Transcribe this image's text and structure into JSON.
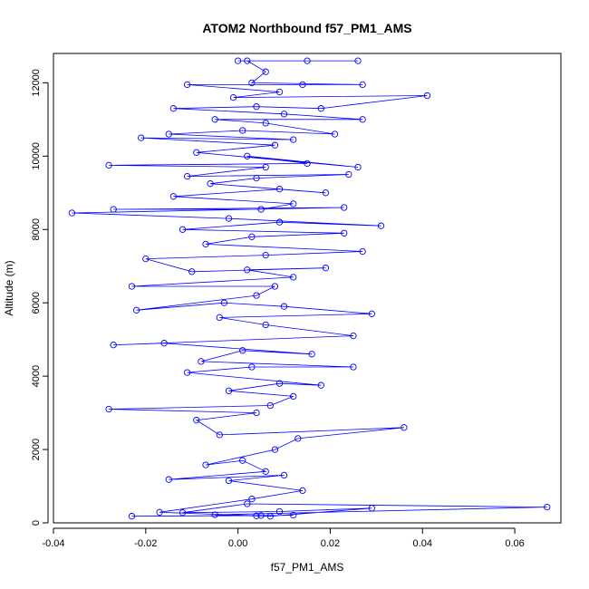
{
  "chart_data": {
    "type": "scatter",
    "title": "ATOM2 Northbound f57_PM1_AMS",
    "xlabel": "f57_PM1_AMS",
    "ylabel": "Altitude (m)",
    "xlim": [
      -0.04,
      0.07
    ],
    "ylim": [
      0,
      12800
    ],
    "x_ticks": [
      -0.04,
      -0.02,
      0.0,
      0.02,
      0.04,
      0.06
    ],
    "x_tick_labels": [
      "-0.04",
      "-0.02",
      "0.00",
      "0.02",
      "0.04",
      "0.06"
    ],
    "y_ticks": [
      0,
      2000,
      4000,
      6000,
      8000,
      10000,
      12000
    ],
    "y_tick_labels": [
      "0",
      "2000",
      "4000",
      "6000",
      "8000",
      "10000",
      "12000"
    ],
    "grid": false,
    "style": "points connected by lines (type='b')",
    "color": "#0000ff",
    "series": [
      {
        "points": [
          [
            -0.023,
            180
          ],
          [
            0.005,
            200
          ],
          [
            0.012,
            210
          ],
          [
            0.004,
            190
          ],
          [
            -0.005,
            220
          ],
          [
            0.067,
            430
          ],
          [
            0.002,
            520
          ],
          [
            -0.012,
            280
          ],
          [
            0.009,
            310
          ],
          [
            0.029,
            400
          ],
          [
            0.007,
            180
          ],
          [
            -0.017,
            290
          ],
          [
            0.003,
            650
          ],
          [
            0.014,
            880
          ],
          [
            -0.002,
            1150
          ],
          [
            0.01,
            1300
          ],
          [
            -0.015,
            1180
          ],
          [
            0.006,
            1400
          ],
          [
            0.001,
            1700
          ],
          [
            -0.007,
            1580
          ],
          [
            0.008,
            2000
          ],
          [
            0.013,
            2300
          ],
          [
            0.036,
            2600
          ],
          [
            -0.004,
            2400
          ],
          [
            -0.009,
            2800
          ],
          [
            0.004,
            3000
          ],
          [
            -0.028,
            3100
          ],
          [
            0.007,
            3200
          ],
          [
            0.012,
            3450
          ],
          [
            -0.002,
            3600
          ],
          [
            0.009,
            3800
          ],
          [
            0.018,
            3750
          ],
          [
            -0.011,
            4100
          ],
          [
            0.003,
            4250
          ],
          [
            0.025,
            4250
          ],
          [
            -0.008,
            4400
          ],
          [
            0.001,
            4700
          ],
          [
            0.016,
            4600
          ],
          [
            -0.016,
            4900
          ],
          [
            -0.027,
            4850
          ],
          [
            0.025,
            5100
          ],
          [
            0.006,
            5400
          ],
          [
            -0.004,
            5600
          ],
          [
            0.029,
            5700
          ],
          [
            0.01,
            5900
          ],
          [
            -0.003,
            6000
          ],
          [
            -0.022,
            5800
          ],
          [
            0.004,
            6200
          ],
          [
            0.008,
            6450
          ],
          [
            -0.023,
            6450
          ],
          [
            0.012,
            6700
          ],
          [
            0.002,
            6900
          ],
          [
            0.019,
            6950
          ],
          [
            -0.01,
            6850
          ],
          [
            -0.02,
            7200
          ],
          [
            0.006,
            7300
          ],
          [
            0.027,
            7400
          ],
          [
            -0.007,
            7600
          ],
          [
            0.003,
            7800
          ],
          [
            0.023,
            7900
          ],
          [
            -0.012,
            8000
          ],
          [
            0.009,
            8200
          ],
          [
            0.031,
            8100
          ],
          [
            -0.002,
            8300
          ],
          [
            -0.036,
            8450
          ],
          [
            0.023,
            8600
          ],
          [
            -0.027,
            8550
          ],
          [
            0.005,
            8550
          ],
          [
            0.012,
            8700
          ],
          [
            -0.014,
            8900
          ],
          [
            0.009,
            9100
          ],
          [
            0.019,
            9000
          ],
          [
            -0.006,
            9250
          ],
          [
            0.004,
            9400
          ],
          [
            0.024,
            9500
          ],
          [
            -0.011,
            9450
          ],
          [
            0.006,
            9700
          ],
          [
            -0.028,
            9750
          ],
          [
            0.015,
            9800
          ],
          [
            0.002,
            10000
          ],
          [
            0.026,
            9700
          ],
          [
            -0.009,
            10100
          ],
          [
            0.008,
            10300
          ],
          [
            -0.021,
            10500
          ],
          [
            0.012,
            10450
          ],
          [
            -0.015,
            10600
          ],
          [
            0.001,
            10700
          ],
          [
            0.021,
            10600
          ],
          [
            0.006,
            10900
          ],
          [
            -0.005,
            11000
          ],
          [
            0.027,
            11000
          ],
          [
            0.01,
            11150
          ],
          [
            -0.014,
            11300
          ],
          [
            0.004,
            11350
          ],
          [
            0.018,
            11300
          ],
          [
            0.041,
            11650
          ],
          [
            -0.001,
            11600
          ],
          [
            0.009,
            11750
          ],
          [
            -0.011,
            11950
          ],
          [
            0.014,
            11950
          ],
          [
            0.027,
            11950
          ],
          [
            0.003,
            12000
          ],
          [
            0.006,
            12300
          ],
          [
            0.002,
            12600
          ],
          [
            0.015,
            12600
          ],
          [
            0.026,
            12600
          ],
          [
            0.0,
            12600
          ]
        ]
      }
    ]
  }
}
